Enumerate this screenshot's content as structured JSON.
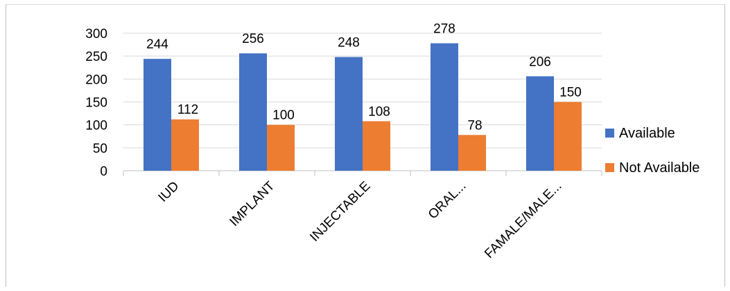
{
  "chart_data": {
    "type": "bar",
    "title": "",
    "xlabel": "",
    "ylabel": "",
    "categories": [
      "IUD",
      "IMPLANT",
      "INJECTABLE",
      "ORAL...",
      "FAMALE/MALE..."
    ],
    "series": [
      {
        "name": "Available",
        "values": [
          244,
          256,
          248,
          278,
          206
        ],
        "color": "#4472C4"
      },
      {
        "name": "Not Available",
        "values": [
          112,
          100,
          108,
          78,
          150
        ],
        "color": "#ED7D31"
      }
    ],
    "ylim": [
      0,
      300
    ],
    "yticks": [
      0,
      50,
      100,
      150,
      200,
      250,
      300
    ],
    "grid": true,
    "legend_position": "right",
    "data_labels": true
  }
}
